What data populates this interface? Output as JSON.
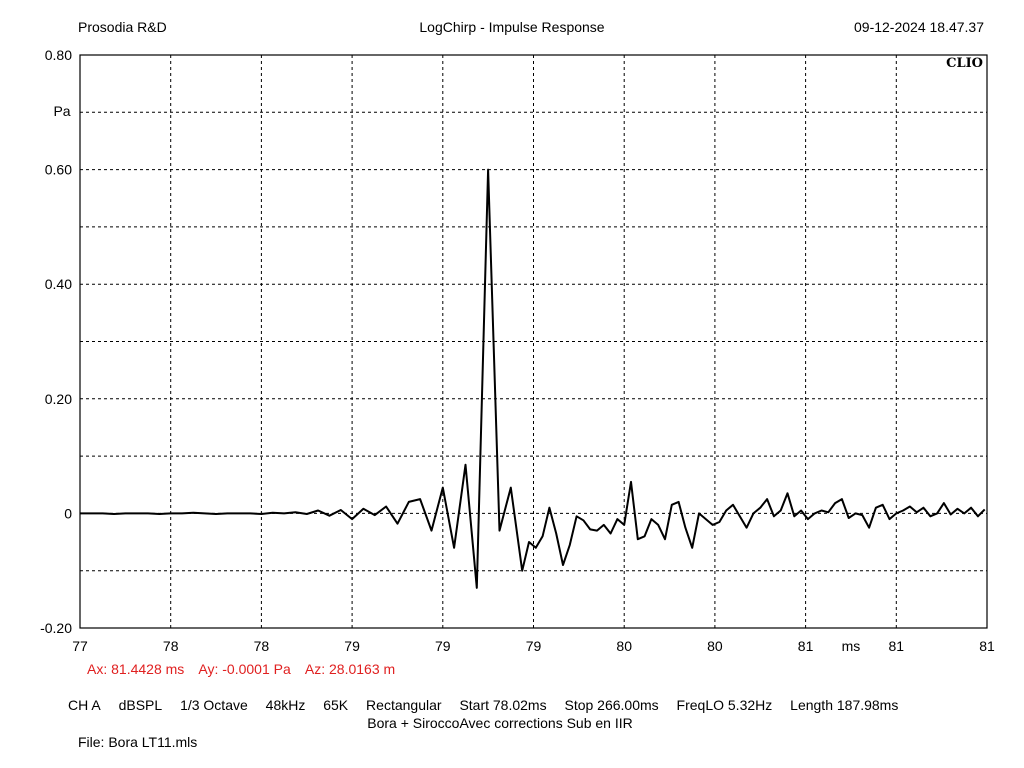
{
  "header": {
    "company": "Prosodia R&D",
    "title": "LogChirp - Impulse Response",
    "datetime": "09-12-2024 18.47.37",
    "brand": "CLIO"
  },
  "chart_data": {
    "type": "line",
    "title": "LogChirp - Impulse Response",
    "ylabel": "Pa",
    "xlabel": "ms",
    "ylim": [
      -0.2,
      0.8
    ],
    "xlim": [
      77,
      81
    ],
    "grid": true,
    "y_ticks": [
      "0.80",
      "",
      "0.60",
      "",
      "0.40",
      "",
      "0.20",
      "",
      "0",
      "",
      "-0.20"
    ],
    "x_ticks": [
      "77",
      "78",
      "78",
      "79",
      "79",
      "79",
      "80",
      "80",
      "81",
      "ms",
      "81",
      "81"
    ],
    "series": [
      {
        "color": "#000000",
        "x": [
          77.0,
          77.05,
          77.1,
          77.15,
          77.2,
          77.25,
          77.3,
          77.35,
          77.4,
          77.45,
          77.5,
          77.55,
          77.6,
          77.65,
          77.7,
          77.75,
          77.8,
          77.85,
          77.9,
          77.95,
          78.0,
          78.05,
          78.1,
          78.15,
          78.2,
          78.25,
          78.3,
          78.35,
          78.4,
          78.45,
          78.5,
          78.55,
          78.6,
          78.65,
          78.7,
          78.75,
          78.8,
          78.85,
          78.9,
          78.95,
          78.98,
          79.01,
          79.04,
          79.07,
          79.1,
          79.13,
          79.16,
          79.19,
          79.22,
          79.25,
          79.28,
          79.31,
          79.34,
          79.37,
          79.4,
          79.43,
          79.46,
          79.49,
          79.52,
          79.55,
          79.58,
          79.61,
          79.64,
          79.67,
          79.7,
          79.73,
          79.76,
          79.79,
          79.82,
          79.85,
          79.88,
          79.91,
          79.94,
          79.97,
          80.0,
          80.03,
          80.06,
          80.09,
          80.12,
          80.15,
          80.18,
          80.21,
          80.24,
          80.27,
          80.3,
          80.33,
          80.36,
          80.39,
          80.42,
          80.45,
          80.48,
          80.51,
          80.54,
          80.57,
          80.6,
          80.63,
          80.66,
          80.69,
          80.72,
          80.75,
          80.78,
          80.81,
          80.84,
          80.87,
          80.9,
          80.93,
          80.96,
          80.99
        ],
        "y": [
          0.0,
          0.0,
          0.0,
          -0.001,
          0.0,
          0.0,
          0.0,
          -0.001,
          0.0,
          0.0,
          0.001,
          0.0,
          -0.001,
          0.0,
          0.0,
          0.0,
          -0.001,
          0.001,
          0.0,
          0.002,
          -0.001,
          0.005,
          -0.004,
          0.006,
          -0.01,
          0.008,
          -0.003,
          0.012,
          -0.018,
          0.02,
          0.025,
          -0.03,
          0.045,
          -0.06,
          0.085,
          -0.13,
          0.6,
          -0.03,
          0.045,
          -0.1,
          -0.05,
          -0.06,
          -0.04,
          0.01,
          -0.035,
          -0.09,
          -0.055,
          -0.005,
          -0.012,
          -0.028,
          -0.03,
          -0.02,
          -0.035,
          -0.01,
          -0.02,
          0.055,
          -0.045,
          -0.04,
          -0.01,
          -0.02,
          -0.045,
          0.015,
          0.02,
          -0.025,
          -0.06,
          0.0,
          -0.01,
          -0.02,
          -0.015,
          0.005,
          0.015,
          -0.005,
          -0.025,
          0.0,
          0.01,
          0.025,
          -0.005,
          0.005,
          0.035,
          -0.005,
          0.005,
          -0.01,
          0.0,
          0.005,
          0.002,
          0.018,
          0.025,
          -0.008,
          0.0,
          -0.003,
          -0.025,
          0.01,
          0.015,
          -0.01,
          0.0,
          0.005,
          0.012,
          0.002,
          0.01,
          -0.005,
          0.0,
          0.018,
          -0.002,
          0.008,
          0.0,
          0.01,
          -0.005,
          0.007
        ]
      }
    ]
  },
  "cursor": {
    "ax": "Ax: 81.4428 ms",
    "ay": "Ay: -0.0001 Pa",
    "az": "Az: 28.0163 m"
  },
  "settings": {
    "channel": "CH A",
    "unit": "dBSPL",
    "smoothing": "1/3 Octave",
    "sample_rate": "48kHz",
    "size": "65K",
    "window": "Rectangular",
    "start": "Start 78.02ms",
    "stop": "Stop 266.00ms",
    "freq_lo": "FreqLO 5.32Hz",
    "length": "Length 187.98ms"
  },
  "comment": "Bora + SiroccoAvec corrections Sub en IIR",
  "file": "File: Bora LT11.mls"
}
